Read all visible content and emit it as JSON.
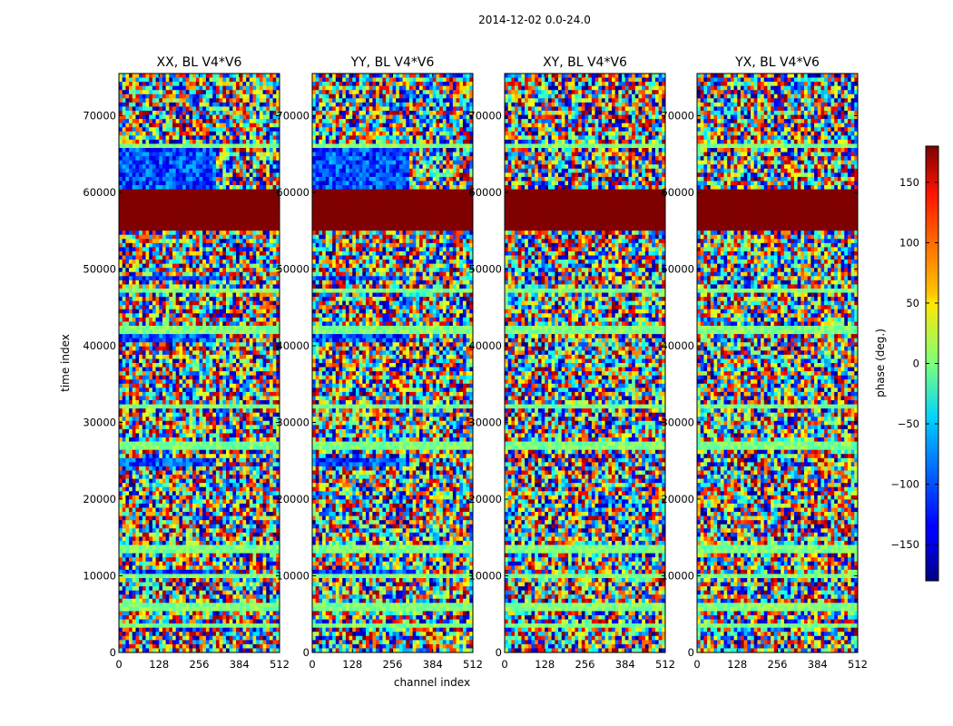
{
  "suptitle": "2014-12-02 0.0-24.0",
  "chart_data": {
    "type": "heatmap",
    "panels": [
      {
        "name": "XX, BL V4*V6"
      },
      {
        "name": "YY, BL V4*V6"
      },
      {
        "name": "XY, BL V4*V6"
      },
      {
        "name": "YX, BL V4*V6"
      }
    ],
    "xlabel": "channel index",
    "ylabel": "time index",
    "xlim": [
      0,
      512
    ],
    "ylim": [
      0,
      75500
    ],
    "x_ticks": [
      "0",
      "128",
      "256",
      "384",
      "512"
    ],
    "x_tick_values": [
      0,
      128,
      256,
      384,
      512
    ],
    "y_ticks": [
      "0",
      "10000",
      "20000",
      "30000",
      "40000",
      "50000",
      "60000",
      "70000"
    ],
    "y_tick_values": [
      0,
      10000,
      20000,
      30000,
      40000,
      50000,
      60000,
      70000
    ],
    "colorbar": {
      "label": "phase (deg.)",
      "range": [
        -180,
        180
      ],
      "ticks": [
        "150",
        "100",
        "50",
        "0",
        "−50",
        "−100",
        "−150"
      ],
      "tick_values": [
        150,
        100,
        50,
        0,
        -50,
        -100,
        -150
      ],
      "colormap": "jet"
    },
    "features": {
      "saturated_band": {
        "y_from": 55000,
        "y_to": 60500,
        "phase": 180
      },
      "flat_bands_near_zero_phase": [
        3500,
        6000,
        9800,
        13500,
        27000,
        32000,
        42000,
        47000,
        58000,
        66000
      ],
      "blue_bands_XX_YY_only": [
        [
          10300,
          11000
        ],
        [
          24500,
          25500
        ],
        [
          40500,
          41500
        ],
        [
          48500,
          49300
        ],
        [
          60500,
          66000
        ]
      ]
    }
  }
}
